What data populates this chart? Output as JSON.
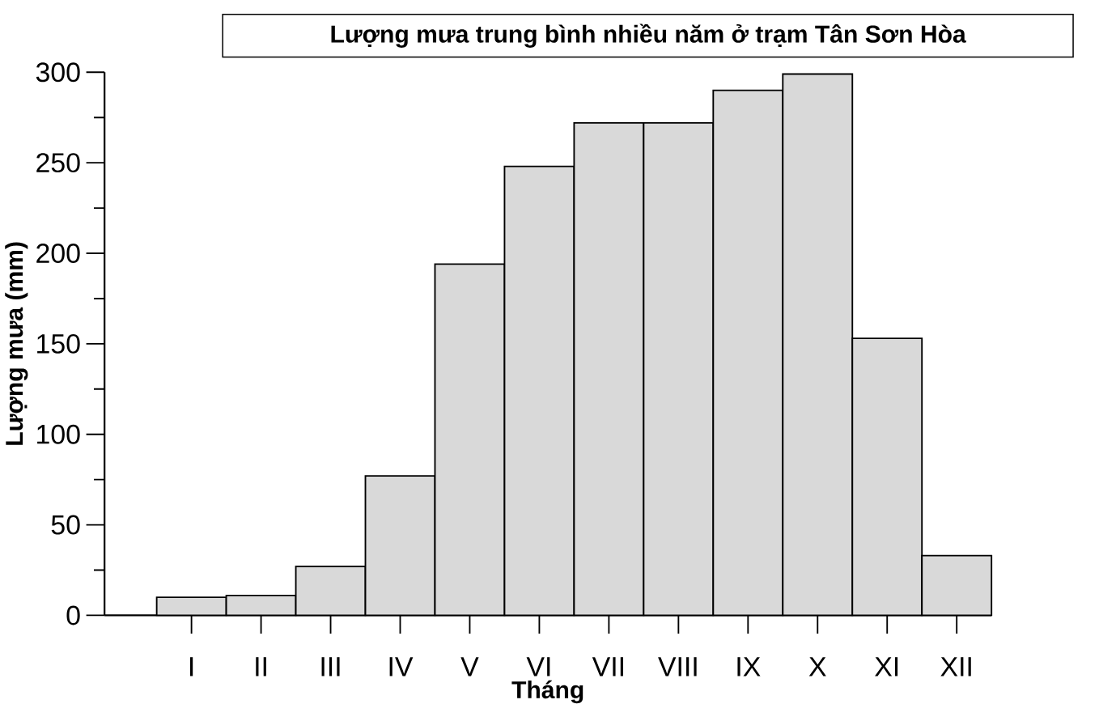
{
  "chart_data": {
    "type": "bar",
    "title": "Lượng mưa trung bình nhiều năm ở trạm Tân Sơn Hòa",
    "xlabel": "Tháng",
    "ylabel": "Lượng mưa (mm)",
    "categories": [
      "I",
      "II",
      "III",
      "IV",
      "V",
      "VI",
      "VII",
      "VIII",
      "IX",
      "X",
      "XI",
      "XII"
    ],
    "values": [
      10,
      11,
      27,
      77,
      194,
      248,
      272,
      272,
      290,
      299,
      153,
      33
    ],
    "color": "#d9d9d9",
    "ylim": [
      0,
      300
    ],
    "yticks": [
      0,
      50,
      100,
      150,
      200,
      250,
      300
    ]
  }
}
